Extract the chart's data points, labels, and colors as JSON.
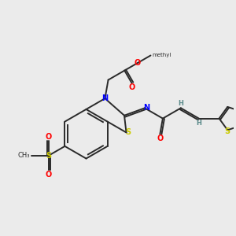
{
  "bg_color": "#ebebeb",
  "bond_color": "#2a2a2a",
  "colors": {
    "N": "#0000ff",
    "O": "#ff0000",
    "S": "#cccc00",
    "S_thio": "#cccc00",
    "H": "#5a8a8a"
  },
  "lw": 1.4
}
